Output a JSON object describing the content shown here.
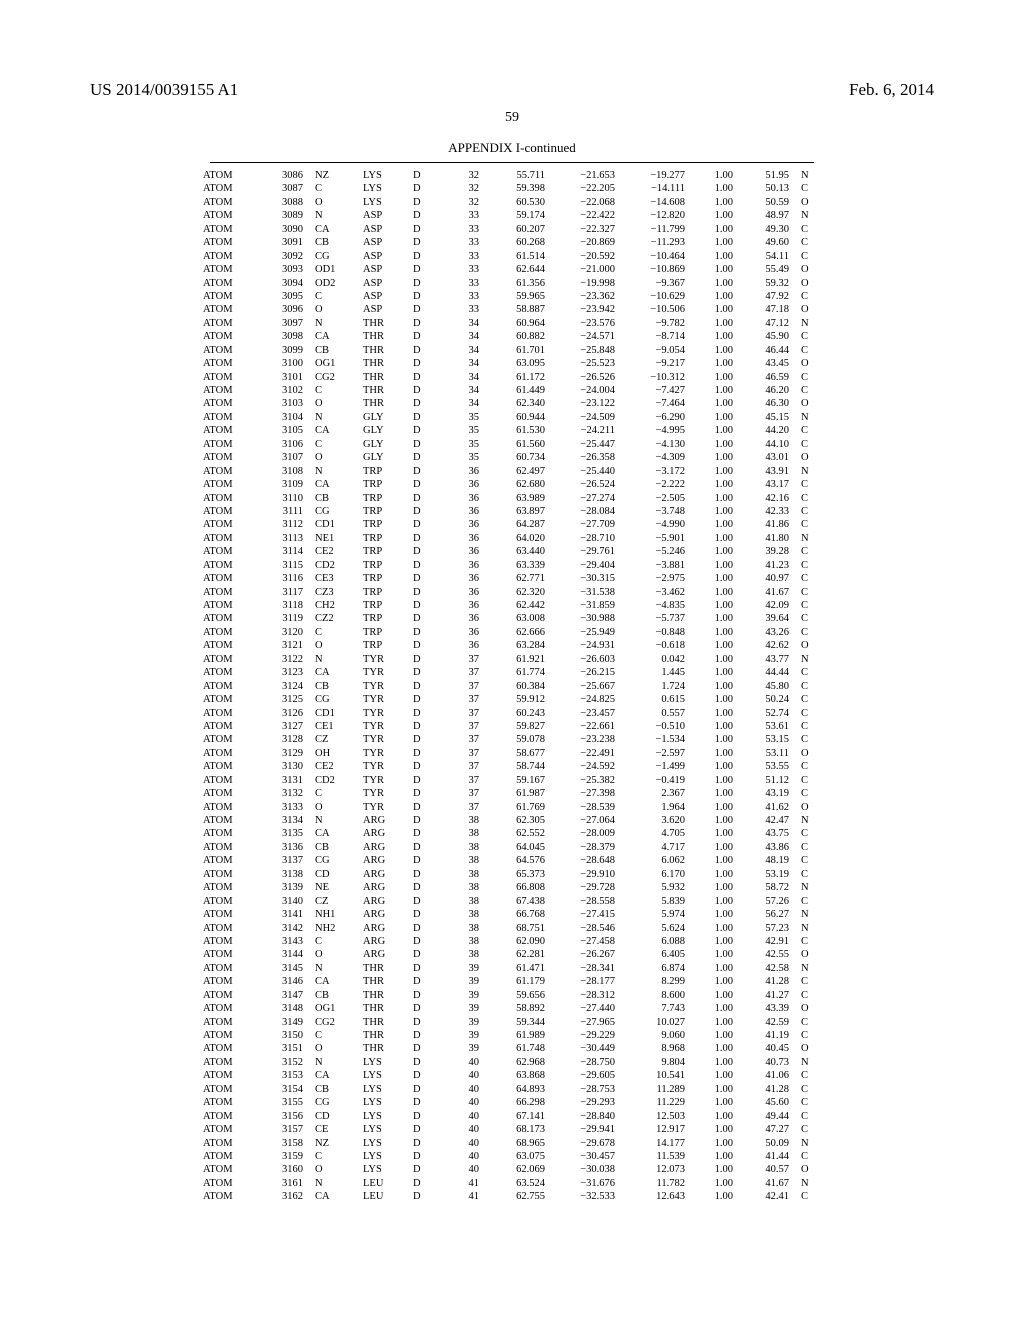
{
  "header": {
    "patent_number": "US 2014/0039155 A1",
    "date": "Feb. 6, 2014"
  },
  "page_number": "59",
  "table_title": "APPENDIX I-continued",
  "rows": [
    [
      "ATOM",
      "3086",
      "NZ",
      "LYS",
      "D",
      "32",
      "55.711",
      "−21.653",
      "−19.277",
      "1.00",
      "51.95",
      "N"
    ],
    [
      "ATOM",
      "3087",
      "C",
      "LYS",
      "D",
      "32",
      "59.398",
      "−22.205",
      "−14.111",
      "1.00",
      "50.13",
      "C"
    ],
    [
      "ATOM",
      "3088",
      "O",
      "LYS",
      "D",
      "32",
      "60.530",
      "−22.068",
      "−14.608",
      "1.00",
      "50.59",
      "O"
    ],
    [
      "ATOM",
      "3089",
      "N",
      "ASP",
      "D",
      "33",
      "59.174",
      "−22.422",
      "−12.820",
      "1.00",
      "48.97",
      "N"
    ],
    [
      "ATOM",
      "3090",
      "CA",
      "ASP",
      "D",
      "33",
      "60.207",
      "−22.327",
      "−11.799",
      "1.00",
      "49.30",
      "C"
    ],
    [
      "ATOM",
      "3091",
      "CB",
      "ASP",
      "D",
      "33",
      "60.268",
      "−20.869",
      "−11.293",
      "1.00",
      "49.60",
      "C"
    ],
    [
      "ATOM",
      "3092",
      "CG",
      "ASP",
      "D",
      "33",
      "61.514",
      "−20.592",
      "−10.464",
      "1.00",
      "54.11",
      "C"
    ],
    [
      "ATOM",
      "3093",
      "OD1",
      "ASP",
      "D",
      "33",
      "62.644",
      "−21.000",
      "−10.869",
      "1.00",
      "55.49",
      "O"
    ],
    [
      "ATOM",
      "3094",
      "OD2",
      "ASP",
      "D",
      "33",
      "61.356",
      "−19.998",
      "−9.367",
      "1.00",
      "59.32",
      "O"
    ],
    [
      "ATOM",
      "3095",
      "C",
      "ASP",
      "D",
      "33",
      "59.965",
      "−23.362",
      "−10.629",
      "1.00",
      "47.92",
      "C"
    ],
    [
      "ATOM",
      "3096",
      "O",
      "ASP",
      "D",
      "33",
      "58.887",
      "−23.942",
      "−10.506",
      "1.00",
      "47.18",
      "O"
    ],
    [
      "ATOM",
      "3097",
      "N",
      "THR",
      "D",
      "34",
      "60.964",
      "−23.576",
      "−9.782",
      "1.00",
      "47.12",
      "N"
    ],
    [
      "ATOM",
      "3098",
      "CA",
      "THR",
      "D",
      "34",
      "60.882",
      "−24.571",
      "−8.714",
      "1.00",
      "45.90",
      "C"
    ],
    [
      "ATOM",
      "3099",
      "CB",
      "THR",
      "D",
      "34",
      "61.701",
      "−25.848",
      "−9.054",
      "1.00",
      "46.44",
      "C"
    ],
    [
      "ATOM",
      "3100",
      "OG1",
      "THR",
      "D",
      "34",
      "63.095",
      "−25.523",
      "−9.217",
      "1.00",
      "43.45",
      "O"
    ],
    [
      "ATOM",
      "3101",
      "CG2",
      "THR",
      "D",
      "34",
      "61.172",
      "−26.526",
      "−10.312",
      "1.00",
      "46.59",
      "C"
    ],
    [
      "ATOM",
      "3102",
      "C",
      "THR",
      "D",
      "34",
      "61.449",
      "−24.004",
      "−7.427",
      "1.00",
      "46.20",
      "C"
    ],
    [
      "ATOM",
      "3103",
      "O",
      "THR",
      "D",
      "34",
      "62.340",
      "−23.122",
      "−7.464",
      "1.00",
      "46.30",
      "O"
    ],
    [
      "ATOM",
      "3104",
      "N",
      "GLY",
      "D",
      "35",
      "60.944",
      "−24.509",
      "−6.290",
      "1.00",
      "45.15",
      "N"
    ],
    [
      "ATOM",
      "3105",
      "CA",
      "GLY",
      "D",
      "35",
      "61.530",
      "−24.211",
      "−4.995",
      "1.00",
      "44.20",
      "C"
    ],
    [
      "ATOM",
      "3106",
      "C",
      "GLY",
      "D",
      "35",
      "61.560",
      "−25.447",
      "−4.130",
      "1.00",
      "44.10",
      "C"
    ],
    [
      "ATOM",
      "3107",
      "O",
      "GLY",
      "D",
      "35",
      "60.734",
      "−26.358",
      "−4.309",
      "1.00",
      "43.01",
      "O"
    ],
    [
      "ATOM",
      "3108",
      "N",
      "TRP",
      "D",
      "36",
      "62.497",
      "−25.440",
      "−3.172",
      "1.00",
      "43.91",
      "N"
    ],
    [
      "ATOM",
      "3109",
      "CA",
      "TRP",
      "D",
      "36",
      "62.680",
      "−26.524",
      "−2.222",
      "1.00",
      "43.17",
      "C"
    ],
    [
      "ATOM",
      "3110",
      "CB",
      "TRP",
      "D",
      "36",
      "63.989",
      "−27.274",
      "−2.505",
      "1.00",
      "42.16",
      "C"
    ],
    [
      "ATOM",
      "3111",
      "CG",
      "TRP",
      "D",
      "36",
      "63.897",
      "−28.084",
      "−3.748",
      "1.00",
      "42.33",
      "C"
    ],
    [
      "ATOM",
      "3112",
      "CD1",
      "TRP",
      "D",
      "36",
      "64.287",
      "−27.709",
      "−4.990",
      "1.00",
      "41.86",
      "C"
    ],
    [
      "ATOM",
      "3113",
      "NE1",
      "TRP",
      "D",
      "36",
      "64.020",
      "−28.710",
      "−5.901",
      "1.00",
      "41.80",
      "N"
    ],
    [
      "ATOM",
      "3114",
      "CE2",
      "TRP",
      "D",
      "36",
      "63.440",
      "−29.761",
      "−5.246",
      "1.00",
      "39.28",
      "C"
    ],
    [
      "ATOM",
      "3115",
      "CD2",
      "TRP",
      "D",
      "36",
      "63.339",
      "−29.404",
      "−3.881",
      "1.00",
      "41.23",
      "C"
    ],
    [
      "ATOM",
      "3116",
      "CE3",
      "TRP",
      "D",
      "36",
      "62.771",
      "−30.315",
      "−2.975",
      "1.00",
      "40.97",
      "C"
    ],
    [
      "ATOM",
      "3117",
      "CZ3",
      "TRP",
      "D",
      "36",
      "62.320",
      "−31.538",
      "−3.462",
      "1.00",
      "41.67",
      "C"
    ],
    [
      "ATOM",
      "3118",
      "CH2",
      "TRP",
      "D",
      "36",
      "62.442",
      "−31.859",
      "−4.835",
      "1.00",
      "42.09",
      "C"
    ],
    [
      "ATOM",
      "3119",
      "CZ2",
      "TRP",
      "D",
      "36",
      "63.008",
      "−30.988",
      "−5.737",
      "1.00",
      "39.64",
      "C"
    ],
    [
      "ATOM",
      "3120",
      "C",
      "TRP",
      "D",
      "36",
      "62.666",
      "−25.949",
      "−0.848",
      "1.00",
      "43.26",
      "C"
    ],
    [
      "ATOM",
      "3121",
      "O",
      "TRP",
      "D",
      "36",
      "63.284",
      "−24.931",
      "−0.618",
      "1.00",
      "42.62",
      "O"
    ],
    [
      "ATOM",
      "3122",
      "N",
      "TYR",
      "D",
      "37",
      "61.921",
      "−26.603",
      "0.042",
      "1.00",
      "43.77",
      "N"
    ],
    [
      "ATOM",
      "3123",
      "CA",
      "TYR",
      "D",
      "37",
      "61.774",
      "−26.215",
      "1.445",
      "1.00",
      "44.44",
      "C"
    ],
    [
      "ATOM",
      "3124",
      "CB",
      "TYR",
      "D",
      "37",
      "60.384",
      "−25.667",
      "1.724",
      "1.00",
      "45.80",
      "C"
    ],
    [
      "ATOM",
      "3125",
      "CG",
      "TYR",
      "D",
      "37",
      "59.912",
      "−24.825",
      "0.615",
      "1.00",
      "50.24",
      "C"
    ],
    [
      "ATOM",
      "3126",
      "CD1",
      "TYR",
      "D",
      "37",
      "60.243",
      "−23.457",
      "0.557",
      "1.00",
      "52.74",
      "C"
    ],
    [
      "ATOM",
      "3127",
      "CE1",
      "TYR",
      "D",
      "37",
      "59.827",
      "−22.661",
      "−0.510",
      "1.00",
      "53.61",
      "C"
    ],
    [
      "ATOM",
      "3128",
      "CZ",
      "TYR",
      "D",
      "37",
      "59.078",
      "−23.238",
      "−1.534",
      "1.00",
      "53.15",
      "C"
    ],
    [
      "ATOM",
      "3129",
      "OH",
      "TYR",
      "D",
      "37",
      "58.677",
      "−22.491",
      "−2.597",
      "1.00",
      "53.11",
      "O"
    ],
    [
      "ATOM",
      "3130",
      "CE2",
      "TYR",
      "D",
      "37",
      "58.744",
      "−24.592",
      "−1.499",
      "1.00",
      "53.55",
      "C"
    ],
    [
      "ATOM",
      "3131",
      "CD2",
      "TYR",
      "D",
      "37",
      "59.167",
      "−25.382",
      "−0.419",
      "1.00",
      "51.12",
      "C"
    ],
    [
      "ATOM",
      "3132",
      "C",
      "TYR",
      "D",
      "37",
      "61.987",
      "−27.398",
      "2.367",
      "1.00",
      "43.19",
      "C"
    ],
    [
      "ATOM",
      "3133",
      "O",
      "TYR",
      "D",
      "37",
      "61.769",
      "−28.539",
      "1.964",
      "1.00",
      "41.62",
      "O"
    ],
    [
      "ATOM",
      "3134",
      "N",
      "ARG",
      "D",
      "38",
      "62.305",
      "−27.064",
      "3.620",
      "1.00",
      "42.47",
      "N"
    ],
    [
      "ATOM",
      "3135",
      "CA",
      "ARG",
      "D",
      "38",
      "62.552",
      "−28.009",
      "4.705",
      "1.00",
      "43.75",
      "C"
    ],
    [
      "ATOM",
      "3136",
      "CB",
      "ARG",
      "D",
      "38",
      "64.045",
      "−28.379",
      "4.717",
      "1.00",
      "43.86",
      "C"
    ],
    [
      "ATOM",
      "3137",
      "CG",
      "ARG",
      "D",
      "38",
      "64.576",
      "−28.648",
      "6.062",
      "1.00",
      "48.19",
      "C"
    ],
    [
      "ATOM",
      "3138",
      "CD",
      "ARG",
      "D",
      "38",
      "65.373",
      "−29.910",
      "6.170",
      "1.00",
      "53.19",
      "C"
    ],
    [
      "ATOM",
      "3139",
      "NE",
      "ARG",
      "D",
      "38",
      "66.808",
      "−29.728",
      "5.932",
      "1.00",
      "58.72",
      "N"
    ],
    [
      "ATOM",
      "3140",
      "CZ",
      "ARG",
      "D",
      "38",
      "67.438",
      "−28.558",
      "5.839",
      "1.00",
      "57.26",
      "C"
    ],
    [
      "ATOM",
      "3141",
      "NH1",
      "ARG",
      "D",
      "38",
      "66.768",
      "−27.415",
      "5.974",
      "1.00",
      "56.27",
      "N"
    ],
    [
      "ATOM",
      "3142",
      "NH2",
      "ARG",
      "D",
      "38",
      "68.751",
      "−28.546",
      "5.624",
      "1.00",
      "57.23",
      "N"
    ],
    [
      "ATOM",
      "3143",
      "C",
      "ARG",
      "D",
      "38",
      "62.090",
      "−27.458",
      "6.088",
      "1.00",
      "42.91",
      "C"
    ],
    [
      "ATOM",
      "3144",
      "O",
      "ARG",
      "D",
      "38",
      "62.281",
      "−26.267",
      "6.405",
      "1.00",
      "42.55",
      "O"
    ],
    [
      "ATOM",
      "3145",
      "N",
      "THR",
      "D",
      "39",
      "61.471",
      "−28.341",
      "6.874",
      "1.00",
      "42.58",
      "N"
    ],
    [
      "ATOM",
      "3146",
      "CA",
      "THR",
      "D",
      "39",
      "61.179",
      "−28.177",
      "8.299",
      "1.00",
      "41.28",
      "C"
    ],
    [
      "ATOM",
      "3147",
      "CB",
      "THR",
      "D",
      "39",
      "59.656",
      "−28.312",
      "8.600",
      "1.00",
      "41.27",
      "C"
    ],
    [
      "ATOM",
      "3148",
      "OG1",
      "THR",
      "D",
      "39",
      "58.892",
      "−27.440",
      "7.743",
      "1.00",
      "43.39",
      "O"
    ],
    [
      "ATOM",
      "3149",
      "CG2",
      "THR",
      "D",
      "39",
      "59.344",
      "−27.965",
      "10.027",
      "1.00",
      "42.59",
      "C"
    ],
    [
      "ATOM",
      "3150",
      "C",
      "THR",
      "D",
      "39",
      "61.989",
      "−29.229",
      "9.060",
      "1.00",
      "41.19",
      "C"
    ],
    [
      "ATOM",
      "3151",
      "O",
      "THR",
      "D",
      "39",
      "61.748",
      "−30.449",
      "8.968",
      "1.00",
      "40.45",
      "O"
    ],
    [
      "ATOM",
      "3152",
      "N",
      "LYS",
      "D",
      "40",
      "62.968",
      "−28.750",
      "9.804",
      "1.00",
      "40.73",
      "N"
    ],
    [
      "ATOM",
      "3153",
      "CA",
      "LYS",
      "D",
      "40",
      "63.868",
      "−29.605",
      "10.541",
      "1.00",
      "41.06",
      "C"
    ],
    [
      "ATOM",
      "3154",
      "CB",
      "LYS",
      "D",
      "40",
      "64.893",
      "−28.753",
      "11.289",
      "1.00",
      "41.28",
      "C"
    ],
    [
      "ATOM",
      "3155",
      "CG",
      "LYS",
      "D",
      "40",
      "66.298",
      "−29.293",
      "11.229",
      "1.00",
      "45.60",
      "C"
    ],
    [
      "ATOM",
      "3156",
      "CD",
      "LYS",
      "D",
      "40",
      "67.141",
      "−28.840",
      "12.503",
      "1.00",
      "49.44",
      "C"
    ],
    [
      "ATOM",
      "3157",
      "CE",
      "LYS",
      "D",
      "40",
      "68.173",
      "−29.941",
      "12.917",
      "1.00",
      "47.27",
      "C"
    ],
    [
      "ATOM",
      "3158",
      "NZ",
      "LYS",
      "D",
      "40",
      "68.965",
      "−29.678",
      "14.177",
      "1.00",
      "50.09",
      "N"
    ],
    [
      "ATOM",
      "3159",
      "C",
      "LYS",
      "D",
      "40",
      "63.075",
      "−30.457",
      "11.539",
      "1.00",
      "41.44",
      "C"
    ],
    [
      "ATOM",
      "3160",
      "O",
      "LYS",
      "D",
      "40",
      "62.069",
      "−30.038",
      "12.073",
      "1.00",
      "40.57",
      "O"
    ],
    [
      "ATOM",
      "3161",
      "N",
      "LEU",
      "D",
      "41",
      "63.524",
      "−31.676",
      "11.782",
      "1.00",
      "41.67",
      "N"
    ],
    [
      "ATOM",
      "3162",
      "CA",
      "LEU",
      "D",
      "41",
      "62.755",
      "−32.533",
      "12.643",
      "1.00",
      "42.41",
      "C"
    ]
  ]
}
